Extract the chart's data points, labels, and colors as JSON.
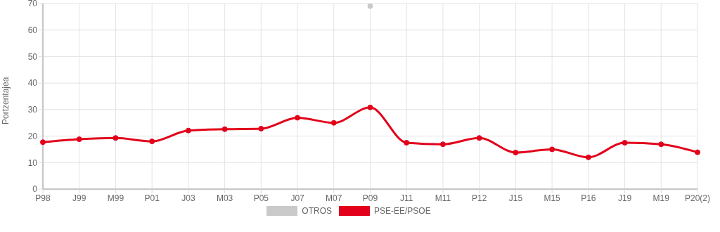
{
  "chart_data": {
    "type": "line",
    "ylabel": "Portzentajea",
    "categories": [
      "P98",
      "J99",
      "M99",
      "P01",
      "J03",
      "M03",
      "P05",
      "J07",
      "M07",
      "P09",
      "J11",
      "M11",
      "P12",
      "J15",
      "M15",
      "P16",
      "J19",
      "M19",
      "P20(2)"
    ],
    "series": [
      {
        "name": "OTROS",
        "color": "#c9c9c9",
        "values": [
          null,
          null,
          null,
          null,
          null,
          null,
          null,
          null,
          null,
          69,
          null,
          null,
          null,
          null,
          null,
          null,
          null,
          null,
          null
        ]
      },
      {
        "name": "PSE-EE/PSOE",
        "color": "#e2001a",
        "values": [
          17.7,
          18.8,
          19.3,
          18,
          22.1,
          22.6,
          22.8,
          26.9,
          25,
          30.8,
          17.5,
          16.9,
          19.3,
          13.8,
          15,
          12,
          17.5,
          16.9,
          13.9
        ]
      }
    ],
    "ylim": [
      0,
      70
    ],
    "yticks": [
      0,
      10,
      20,
      30,
      40,
      50,
      60,
      70
    ],
    "grid": true,
    "legend": "bottom",
    "marker": "circle",
    "line_style": "solid"
  }
}
